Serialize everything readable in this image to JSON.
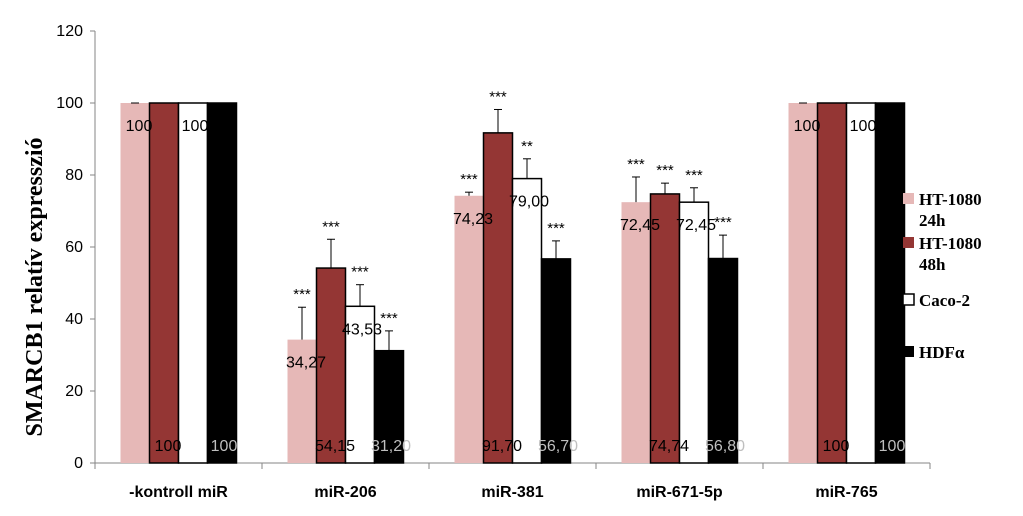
{
  "chart_data": {
    "type": "bar",
    "title": "",
    "xlabel": "",
    "ylabel": "SMARCB1 relatív expresszió",
    "ylim": [
      0,
      120
    ],
    "yticks": [
      0,
      20,
      40,
      60,
      80,
      100,
      120
    ],
    "grid": false,
    "legend_position": "right",
    "categories": [
      "-kontroll miR",
      "miR-206",
      "miR-381",
      "miR-671-5p",
      "miR-765"
    ],
    "series": [
      {
        "name": "HT-1080 24h",
        "legend_lines": [
          "HT-1080",
          "24h"
        ],
        "color": "#e6b8b7",
        "values": [
          100,
          34.27,
          74.23,
          72.45,
          100
        ],
        "errors": [
          0,
          9,
          1,
          7,
          0
        ],
        "labels": [
          "100",
          "34,27",
          "74,23",
          "72,45",
          "100"
        ],
        "significance": [
          "",
          "***",
          "***",
          "***",
          ""
        ]
      },
      {
        "name": "HT-1080 48h",
        "legend_lines": [
          "HT-1080",
          "48h"
        ],
        "color": "#943634",
        "values": [
          100,
          54.15,
          91.7,
          74.74,
          100
        ],
        "errors": [
          0,
          8,
          6.5,
          3,
          0
        ],
        "labels": [
          "100",
          "54,15",
          "91,70",
          "74,74",
          "100"
        ],
        "significance": [
          "",
          "***",
          "***",
          "***",
          ""
        ]
      },
      {
        "name": "Caco-2",
        "legend_lines": [
          "Caco-2"
        ],
        "color": "#ffffff",
        "values": [
          100,
          43.53,
          79.0,
          72.45,
          100
        ],
        "errors": [
          0,
          6,
          5.5,
          4,
          0
        ],
        "labels": [
          "100",
          "43,53",
          "79,00",
          "72,45",
          "100"
        ],
        "significance": [
          "",
          "***",
          "**",
          "***",
          ""
        ]
      },
      {
        "name": "HDFα",
        "legend_lines": [
          "HDFα"
        ],
        "color": "#000000",
        "values": [
          100,
          31.2,
          56.7,
          56.8,
          100
        ],
        "errors": [
          0,
          5.5,
          5,
          6.5,
          0
        ],
        "labels": [
          "100",
          "31,20",
          "56,70",
          "56,80",
          "100"
        ],
        "significance": [
          "",
          "***",
          "***",
          "***",
          ""
        ]
      }
    ]
  }
}
